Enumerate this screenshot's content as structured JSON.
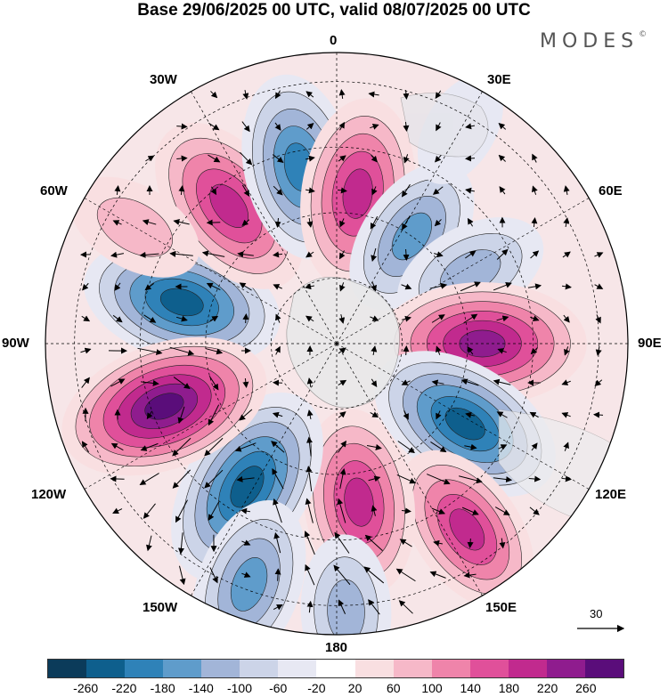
{
  "title": "Base 29/06/2025 00 UTC, valid 08/07/2025 00 UTC",
  "brand": "MODES",
  "brand_mark": "©",
  "longitude_labels": {
    "top": "0",
    "e30": "30E",
    "e60": "60E",
    "e90": "90E",
    "e120": "120E",
    "e150": "150E",
    "bottom": "180",
    "w150": "150W",
    "w120": "120W",
    "w90": "90W",
    "w60": "60W",
    "w30": "30W"
  },
  "reference_vector_label": "30",
  "colorbar": {
    "colors": [
      "#0b3b5a",
      "#0e5f8d",
      "#2f82b8",
      "#5f9ccb",
      "#a2b5d8",
      "#ccd4e8",
      "#e7e8f3",
      "#ffffff",
      "#f9dfe1",
      "#f6b8c8",
      "#ef84aa",
      "#e0509a",
      "#c12a8e",
      "#8f1c8e",
      "#5a0d7a"
    ],
    "ticks": [
      "-260",
      "-220",
      "-180",
      "-140",
      "-100",
      "-60",
      "-20",
      "20",
      "60",
      "100",
      "140",
      "180",
      "220",
      "260"
    ]
  },
  "anomaly_cells": [
    {
      "lon": -75,
      "r": 0.55,
      "v": -230
    },
    {
      "lon": -38,
      "r": 0.6,
      "v": 210
    },
    {
      "lon": -12,
      "r": 0.62,
      "v": -200
    },
    {
      "lon": 8,
      "r": 0.52,
      "v": 210
    },
    {
      "lon": 35,
      "r": 0.45,
      "v": -150
    },
    {
      "lon": 62,
      "r": 0.52,
      "v": -130
    },
    {
      "lon": 90,
      "r": 0.5,
      "v": 250
    },
    {
      "lon": 122,
      "r": 0.52,
      "v": -230
    },
    {
      "lon": 145,
      "r": 0.78,
      "v": 180
    },
    {
      "lon": 172,
      "r": 0.55,
      "v": 200
    },
    {
      "lon": -148,
      "r": 0.58,
      "v": -250
    },
    {
      "lon": -160,
      "r": 0.88,
      "v": -170
    },
    {
      "lon": -110,
      "r": 0.63,
      "v": 260
    },
    {
      "lon": 178,
      "r": 0.92,
      "v": -120
    },
    {
      "lon": -60,
      "r": 0.8,
      "v": 90
    },
    {
      "lon": 30,
      "r": 0.85,
      "v": -40
    }
  ]
}
